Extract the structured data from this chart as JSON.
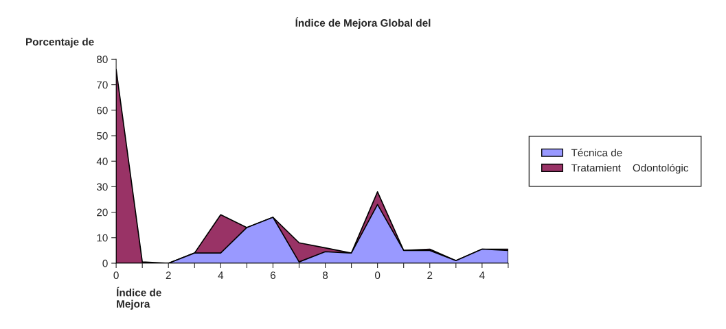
{
  "chart_data": {
    "type": "area",
    "title": "Índice de Mejora Global del",
    "ylabel": "Porcentaje de",
    "xlabel": "Índice de\nMejora",
    "categories": [
      "0",
      null,
      "2",
      null,
      "4",
      null,
      "6",
      null,
      "8",
      null,
      "0",
      null,
      "2",
      null,
      "4",
      null
    ],
    "series": [
      {
        "name": "Técnica de",
        "color": "#9999ff",
        "values": [
          0,
          0,
          0,
          4,
          4,
          14,
          18,
          0.5,
          4.5,
          4,
          23,
          5,
          5,
          1,
          5.5,
          5
        ]
      },
      {
        "name": "Tratamient    Odontológic",
        "color": "#993366",
        "values": [
          76,
          0.5,
          0,
          4,
          19,
          14,
          18,
          8,
          6,
          4,
          28,
          5,
          5.5,
          1,
          5.5,
          5.5
        ]
      }
    ],
    "ylim": [
      0,
      80
    ],
    "yticks": [
      0,
      10,
      20,
      30,
      40,
      50,
      60,
      70,
      80
    ],
    "grid": false,
    "legend": "right"
  }
}
